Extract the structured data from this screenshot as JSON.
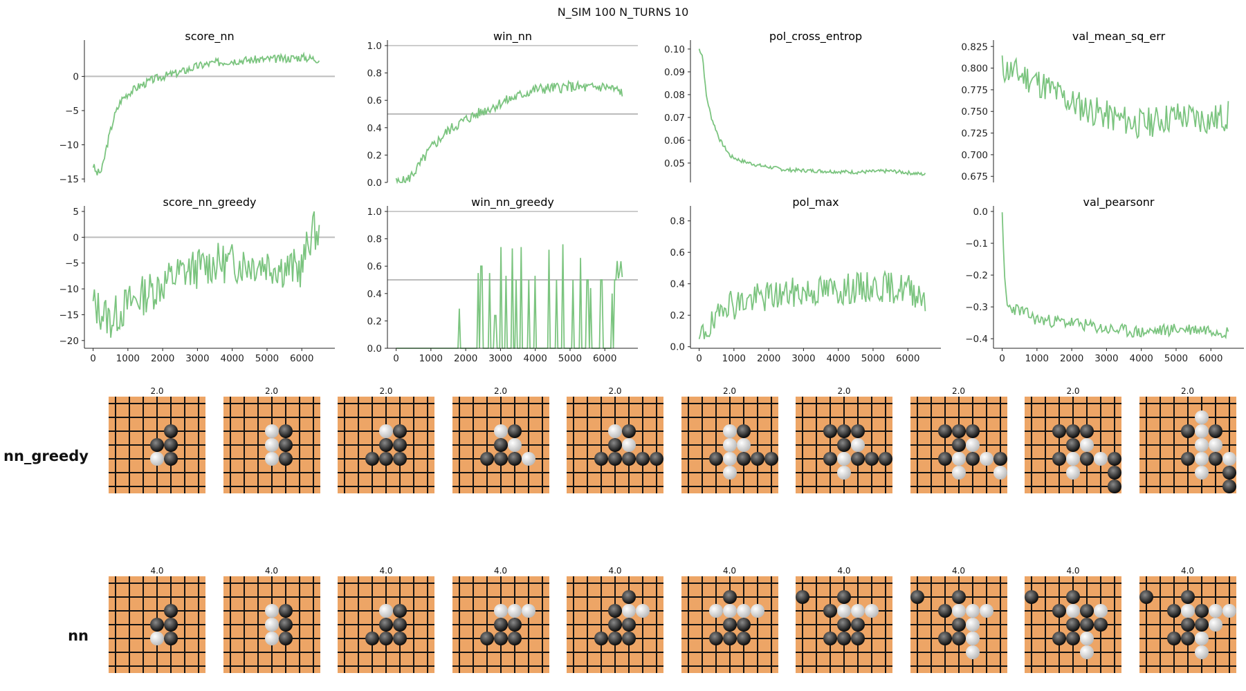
{
  "suptitle": "N_SIM 100   N_TURNS 10",
  "chart_data": [
    {
      "id": "score_nn",
      "type": "line",
      "title": "score_nn",
      "xlabel": "",
      "ylabel": "",
      "xlim": [
        0,
        6600
      ],
      "ylim": [
        -15.5,
        4.5
      ],
      "yticks": [
        0,
        -5,
        -10,
        -15
      ],
      "ytick_labels": [
        "0",
        "−5",
        "−10",
        "−15"
      ],
      "xticks": [],
      "xtick_labels": [],
      "hline": 0,
      "trend": [
        [
          0,
          -13
        ],
        [
          100,
          -14.2
        ],
        [
          250,
          -13.8
        ],
        [
          400,
          -10
        ],
        [
          600,
          -6
        ],
        [
          800,
          -3.5
        ],
        [
          1000,
          -2.5
        ],
        [
          1300,
          -1.5
        ],
        [
          1700,
          -0.5
        ],
        [
          2000,
          0
        ],
        [
          2500,
          0.6
        ],
        [
          3000,
          1.5
        ],
        [
          3500,
          2
        ],
        [
          4000,
          2.3
        ],
        [
          4500,
          2.4
        ],
        [
          5000,
          2.5
        ],
        [
          5500,
          2.6
        ],
        [
          6000,
          2.8
        ],
        [
          6500,
          2.5
        ]
      ],
      "noise": 0.6,
      "n_points": 220,
      "seed": 3
    },
    {
      "id": "win_nn",
      "type": "line",
      "title": "win_nn",
      "ylim": [
        0,
        1.0
      ],
      "yticks": [
        0,
        0.2,
        0.4,
        0.6,
        0.8,
        1.0
      ],
      "ytick_labels": [
        "0.0",
        "0.2",
        "0.4",
        "0.6",
        "0.8",
        "1.0"
      ],
      "xticks": [],
      "xtick_labels": [],
      "hline": 0.5,
      "topline": 1.0,
      "trend": [
        [
          0,
          0
        ],
        [
          300,
          0.01
        ],
        [
          600,
          0.1
        ],
        [
          1000,
          0.25
        ],
        [
          1500,
          0.38
        ],
        [
          2000,
          0.46
        ],
        [
          2500,
          0.52
        ],
        [
          3000,
          0.58
        ],
        [
          3500,
          0.63
        ],
        [
          4000,
          0.68
        ],
        [
          4500,
          0.69
        ],
        [
          5000,
          0.7
        ],
        [
          5500,
          0.69
        ],
        [
          6000,
          0.7
        ],
        [
          6500,
          0.66
        ]
      ],
      "noise": 0.04,
      "n_points": 220,
      "seed": 5
    },
    {
      "id": "pol_cross_entrop",
      "type": "line",
      "title": "pol_cross_entrop",
      "ylim": [
        0.0415,
        0.1015
      ],
      "yticks": [
        0.05,
        0.06,
        0.07,
        0.08,
        0.09,
        0.1
      ],
      "ytick_labels": [
        "0.05",
        "0.06",
        "0.07",
        "0.08",
        "0.09",
        "0.10"
      ],
      "xticks": [],
      "xtick_labels": [],
      "trend": [
        [
          0,
          0.1
        ],
        [
          100,
          0.097
        ],
        [
          200,
          0.08
        ],
        [
          350,
          0.07
        ],
        [
          600,
          0.06
        ],
        [
          900,
          0.053
        ],
        [
          1200,
          0.051
        ],
        [
          1700,
          0.049
        ],
        [
          2500,
          0.047
        ],
        [
          3500,
          0.0465
        ],
        [
          4500,
          0.046
        ],
        [
          5500,
          0.0465
        ],
        [
          6500,
          0.045
        ]
      ],
      "noise": 0.0008,
      "n_points": 220,
      "seed": 7
    },
    {
      "id": "val_mean_sq_err",
      "type": "line",
      "title": "val_mean_sq_err",
      "ylim": [
        0.668,
        0.826
      ],
      "yticks": [
        0.675,
        0.7,
        0.725,
        0.75,
        0.775,
        0.8,
        0.825
      ],
      "ytick_labels": [
        "0.675",
        "0.700",
        "0.725",
        "0.750",
        "0.775",
        "0.800",
        "0.825"
      ],
      "xticks": [],
      "xtick_labels": [],
      "trend": [
        [
          0,
          0.8
        ],
        [
          1000,
          0.785
        ],
        [
          2000,
          0.76
        ],
        [
          3000,
          0.745
        ],
        [
          4000,
          0.735
        ],
        [
          5000,
          0.745
        ],
        [
          6000,
          0.74
        ],
        [
          6500,
          0.745
        ]
      ],
      "noise": 0.018,
      "n_points": 180,
      "seed": 11
    },
    {
      "id": "score_nn_greedy",
      "type": "line",
      "title": "score_nn_greedy",
      "ylim": [
        -21.5,
        5
      ],
      "yticks": [
        5,
        0,
        -5,
        -10,
        -15,
        -20
      ],
      "ytick_labels": [
        "5",
        "0",
        "−5",
        "−10",
        "−15",
        "−20"
      ],
      "xticks": [
        0,
        1000,
        2000,
        3000,
        4000,
        5000,
        6000
      ],
      "xtick_labels": [
        "0",
        "1000",
        "2000",
        "3000",
        "4000",
        "5000",
        "6000"
      ],
      "hline": 0,
      "trend": [
        [
          0,
          -13
        ],
        [
          500,
          -16
        ],
        [
          1000,
          -13
        ],
        [
          1500,
          -11
        ],
        [
          2000,
          -9
        ],
        [
          2500,
          -7
        ],
        [
          3000,
          -6
        ],
        [
          3500,
          -5
        ],
        [
          4000,
          -5
        ],
        [
          4500,
          -5
        ],
        [
          5000,
          -5
        ],
        [
          5500,
          -6
        ],
        [
          6000,
          -6
        ],
        [
          6300,
          1.5
        ],
        [
          6500,
          0.5
        ]
      ],
      "noise": 4.0,
      "n_points": 180,
      "seed": 13
    },
    {
      "id": "win_nn_greedy",
      "type": "line",
      "title": "win_nn_greedy",
      "ylim": [
        0,
        1.0
      ],
      "yticks": [
        0,
        0.2,
        0.4,
        0.6,
        0.8,
        1.0
      ],
      "ytick_labels": [
        "0.0",
        "0.2",
        "0.4",
        "0.6",
        "0.8",
        "1.0"
      ],
      "xticks": [
        0,
        1000,
        2000,
        3000,
        4000,
        5000,
        6000
      ],
      "xtick_labels": [
        "0",
        "1000",
        "2000",
        "3000",
        "4000",
        "5000",
        "6000"
      ],
      "hline": 0.5,
      "topline": 1.0,
      "binary": true,
      "spikes": [
        [
          1800,
          0.29
        ],
        [
          2350,
          0.55
        ],
        [
          2450,
          0.6
        ],
        [
          2700,
          0.55
        ],
        [
          2850,
          0.24
        ],
        [
          3000,
          0.74
        ],
        [
          3150,
          0.53
        ],
        [
          3350,
          0.73
        ],
        [
          3450,
          0.5
        ],
        [
          3600,
          0.74
        ],
        [
          3800,
          0.5
        ],
        [
          4000,
          0.53
        ],
        [
          4400,
          0.72
        ],
        [
          4600,
          0.5
        ],
        [
          4800,
          0.76
        ],
        [
          5100,
          0.5
        ],
        [
          5300,
          0.66
        ],
        [
          5500,
          0.5
        ],
        [
          5600,
          0.44
        ],
        [
          5900,
          0.5
        ],
        [
          6200,
          0.4
        ],
        [
          6300,
          0.5
        ],
        [
          6450,
          0.64
        ],
        [
          6550,
          0.5
        ]
      ],
      "n_points": 180,
      "seed": 17
    },
    {
      "id": "pol_max",
      "type": "line",
      "title": "pol_max",
      "ylim": [
        -0.01,
        0.86
      ],
      "yticks": [
        0,
        0.2,
        0.4,
        0.6,
        0.8
      ],
      "ytick_labels": [
        "0.0",
        "0.2",
        "0.4",
        "0.6",
        "0.8"
      ],
      "xticks": [
        0,
        1000,
        2000,
        3000,
        4000,
        5000,
        6000
      ],
      "xtick_labels": [
        "0",
        "1000",
        "2000",
        "3000",
        "4000",
        "5000",
        "6000"
      ],
      "trend": [
        [
          0,
          0.03
        ],
        [
          200,
          0.12
        ],
        [
          500,
          0.14
        ],
        [
          700,
          0.3
        ],
        [
          1000,
          0.27
        ],
        [
          1500,
          0.3
        ],
        [
          2000,
          0.32
        ],
        [
          3000,
          0.35
        ],
        [
          4000,
          0.36
        ],
        [
          5000,
          0.38
        ],
        [
          6000,
          0.37
        ],
        [
          6500,
          0.32
        ]
      ],
      "noise": 0.1,
      "n_points": 180,
      "seed": 19
    },
    {
      "id": "val_pearsonr",
      "type": "line",
      "title": "val_pearsonr",
      "ylim": [
        -0.43,
        0.0
      ],
      "yticks": [
        0.0,
        -0.1,
        -0.2,
        -0.3,
        -0.4
      ],
      "ytick_labels": [
        "0.0",
        "−0.1",
        "−0.2",
        "−0.3",
        "−0.4"
      ],
      "xticks": [
        0,
        1000,
        2000,
        3000,
        4000,
        5000,
        6000
      ],
      "xtick_labels": [
        "0",
        "1000",
        "2000",
        "3000",
        "4000",
        "5000",
        "6000"
      ],
      "trend": [
        [
          0,
          -0.02
        ],
        [
          60,
          -0.2
        ],
        [
          150,
          -0.3
        ],
        [
          500,
          -0.31
        ],
        [
          1000,
          -0.34
        ],
        [
          2000,
          -0.35
        ],
        [
          3000,
          -0.37
        ],
        [
          4000,
          -0.38
        ],
        [
          5000,
          -0.37
        ],
        [
          6000,
          -0.37
        ],
        [
          6500,
          -0.38
        ]
      ],
      "noise": 0.02,
      "n_points": 180,
      "seed": 23
    }
  ],
  "rows": [
    {
      "label": "nn_greedy",
      "titles": [
        "2.0",
        "2.0",
        "2.0",
        "2.0",
        "2.0",
        "2.0",
        "2.0",
        "2.0",
        "2.0",
        "2.0"
      ],
      "boards": [
        "......./......./....X../...XX../...OX../......./.......",
        "......./......./...OX../...OX../...OX../......./.......",
        "......./......./...OX../...XX../..XXX../......./.......",
        "......./......./...OX../...XO../..XXXO./......./.......",
        "......./......./...OX../...XO../..XXXXX/......./.......",
        "......./......./...OX../...OO../..XOXXX/...O.../.......",
        "......./......./..XXX../...XO../..XOXXX/...O.../.......",
        "......./......./..XXX../...XO../..XOXOX/...O..O/.......",
        "......./......./..XXX../...XO../..XOXOX/...O..X/......X",
        "......./....O../...XOX./....OO./...XOXOX/....O.X/......X"
      ]
    },
    {
      "label": "nn",
      "titles": [
        "4.0",
        "4.0",
        "4.0",
        "4.0",
        "4.0",
        "4.0",
        "4.0",
        "4.0",
        "4.0",
        "4.0"
      ],
      "boards": [
        "......./......./....X../...XX../...OX../......./.......",
        "......./......./...OX../...OX../...OX../......./.......",
        "......./......./...OX../...XX../..XXX../......./.......",
        "......./......./...OOO./...XX../..XXX../......./.......",
        "......./....X../...XOO./...XX../..XXX../......./.......",
        "......./...X.../..OOOO./...XX../..XXX../......./.......",
        "......./X..X.../..XOOO./...XX../..XXX../......./.......",
        "......./X..X.../..XOOO./...XO../..XXO../....O../.......",
        "......./X..X.../..XOXO./...XXX./..XXO../....O../.......",
        "......./X..X.../..XOXOO/...XXO./..XXO../....O../......."
      ]
    }
  ],
  "colors": {
    "line": "#7bc47f",
    "refline": "#bbbbbb",
    "board": "#eda566",
    "grid": "#111111"
  }
}
